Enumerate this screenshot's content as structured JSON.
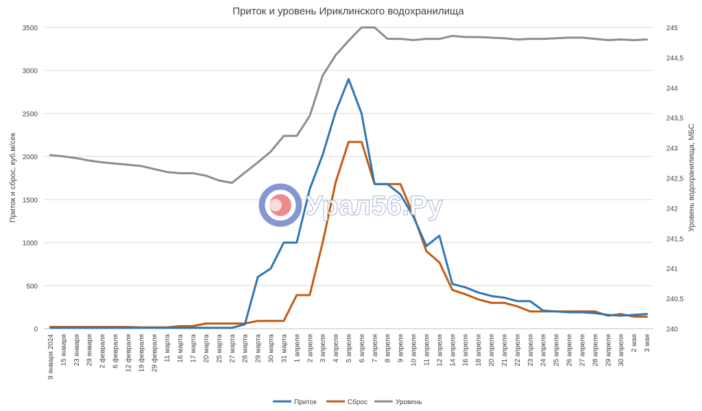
{
  "chart_data": {
    "type": "line",
    "title": "Приток и уровень Ириклинского водохранилища",
    "ylabel": "Приток и сброс, куб.м/сек",
    "y2label": "Уровень водохранилища, МБС",
    "ylim": [
      0,
      3500
    ],
    "y2lim": [
      240,
      245
    ],
    "yticks": [
      0,
      500,
      1000,
      1500,
      2000,
      2500,
      3000,
      3500
    ],
    "y2ticks": [
      "240",
      "240,5",
      "241",
      "241,5",
      "242",
      "242,5",
      "243",
      "243,5",
      "244",
      "244,5",
      "245"
    ],
    "grid": true,
    "legend": "bottom",
    "x": [
      "9 января 2024",
      "15 января",
      "23 января",
      "29 января",
      "2 февраля",
      "6 февраля",
      "12 февраля",
      "19 февраля",
      "29 февраля",
      "11 марта",
      "16 марта",
      "17 марта",
      "20 марта",
      "25 марта",
      "27 марта",
      "28 марта",
      "29 марта",
      "30 марта",
      "31 марта",
      "1 апреля",
      "2 апреля",
      "3 апреля",
      "4 апреля",
      "5 апреля",
      "6 апреля",
      "7 апреля",
      "8 апреля",
      "9 апреля",
      "10 апреля",
      "11 апреля",
      "12 апреля",
      "14 апреля",
      "16 апреля",
      "18 апреля",
      "20 апреля",
      "21 апреля",
      "22 апреля",
      "23 апреля",
      "24 апреля",
      "25 апреля",
      "26 апреля",
      "27 апреля",
      "28 апреля",
      "29 апреля",
      "30 апреля",
      "2 мая",
      "3 мая"
    ],
    "series": [
      {
        "name": "Приток",
        "color": "#2E75B6",
        "axis": "left",
        "values": [
          10,
          10,
          10,
          10,
          10,
          10,
          10,
          10,
          10,
          10,
          10,
          10,
          10,
          10,
          10,
          50,
          600,
          700,
          1000,
          1000,
          1620,
          2020,
          2520,
          2900,
          2500,
          1680,
          1680,
          1560,
          1300,
          960,
          1080,
          520,
          480,
          420,
          380,
          360,
          320,
          320,
          210,
          200,
          190,
          190,
          180,
          160,
          150,
          160,
          170
        ]
      },
      {
        "name": "Сброс",
        "color": "#C55A11",
        "axis": "left",
        "values": [
          20,
          20,
          20,
          20,
          20,
          20,
          20,
          15,
          15,
          15,
          30,
          30,
          60,
          60,
          60,
          60,
          90,
          90,
          90,
          390,
          390,
          1000,
          1700,
          2170,
          2170,
          1680,
          1680,
          1680,
          1320,
          900,
          770,
          450,
          400,
          340,
          300,
          300,
          260,
          200,
          200,
          200,
          200,
          200,
          200,
          150,
          170,
          140,
          140
        ]
      },
      {
        "name": "Уровень",
        "color": "#8C8C8C",
        "axis": "right",
        "values": [
          242.88,
          242.86,
          242.83,
          242.79,
          242.76,
          242.74,
          242.72,
          242.7,
          242.65,
          242.6,
          242.58,
          242.58,
          242.54,
          242.46,
          242.42,
          242.59,
          242.76,
          242.94,
          243.2,
          243.2,
          243.53,
          244.2,
          244.54,
          244.78,
          245.0,
          245.0,
          244.81,
          244.81,
          244.79,
          244.81,
          244.81,
          244.86,
          244.84,
          244.84,
          244.83,
          244.82,
          244.8,
          244.81,
          244.81,
          244.82,
          244.83,
          244.83,
          244.81,
          244.79,
          244.8,
          244.79,
          244.8
        ]
      }
    ]
  },
  "watermark": {
    "text": "Урал56.Ру"
  }
}
